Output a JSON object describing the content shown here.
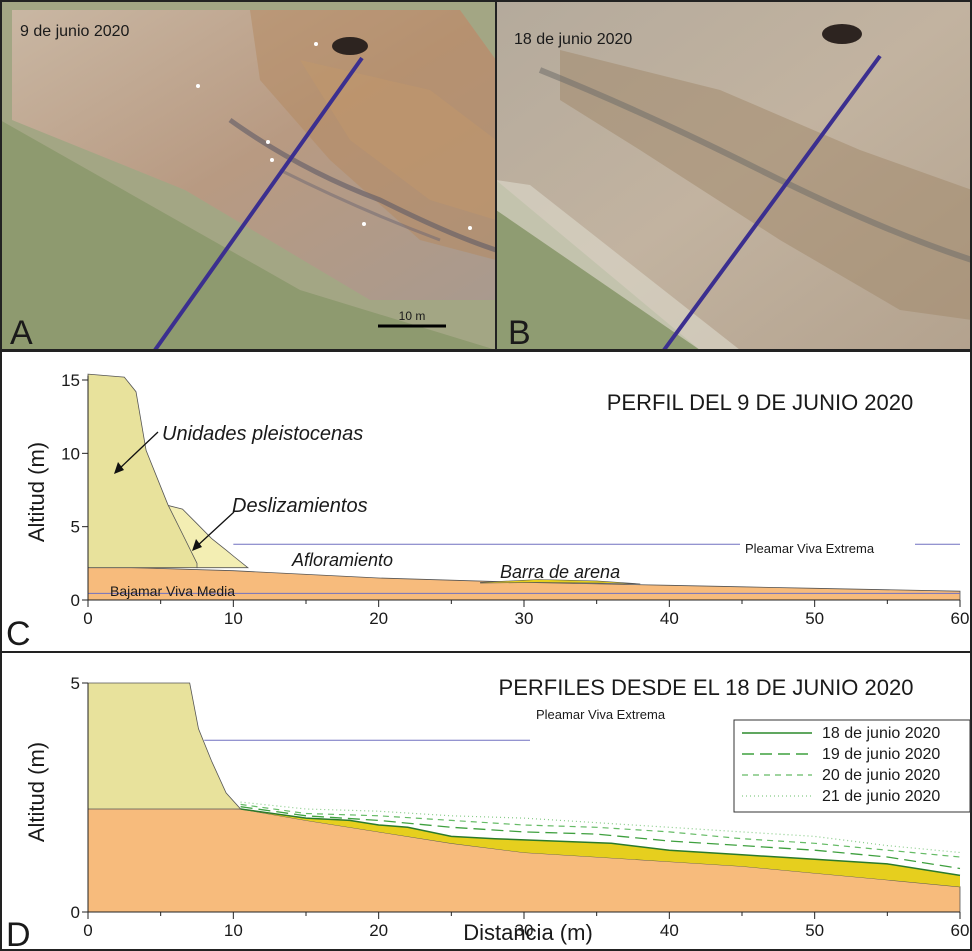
{
  "panel_a": {
    "letter": "A",
    "date": "9 de junio 2020",
    "scale": "10 m"
  },
  "panel_b": {
    "letter": "B",
    "date": "18 de junio 2020"
  },
  "panel_c": {
    "letter": "C",
    "title": "PERFIL DEL 9 DE JUNIO 2020",
    "ylabel": "Altitud (m)",
    "yticks": [
      "15",
      "10",
      "5",
      "0"
    ],
    "xticks": [
      "0",
      "10",
      "20",
      "30",
      "40",
      "50",
      "60"
    ],
    "labels": {
      "pleistocene": "Unidades pleistocenas",
      "slides": "Deslizamientos",
      "outcrop": "Afloramiento",
      "bar": "Barra de arena",
      "high_tide": "Pleamar Viva Extrema",
      "low_tide": "Bajamar Viva Media"
    }
  },
  "panel_d": {
    "letter": "D",
    "title": "PERFILES DESDE EL 18 DE JUNIO 2020",
    "ylabel": "Altitud (m)",
    "xlabel": "Distancia (m)",
    "yticks": [
      "5",
      "0"
    ],
    "xticks": [
      "0",
      "10",
      "20",
      "30",
      "40",
      "50",
      "60"
    ],
    "high_tide": "Pleamar Viva Extrema",
    "legend": [
      "18 de junio 2020",
      "19 de junio 2020",
      "20 de junio 2020",
      "21 de junio 2020"
    ]
  },
  "colors": {
    "pleistocene": "#e8e29c",
    "slides": "#f3eeb3",
    "substrate": "#f7bb7c",
    "bar": "#e6cf1e",
    "profile_line": "#2b8a2b",
    "transect": "#3b2f8f"
  }
}
